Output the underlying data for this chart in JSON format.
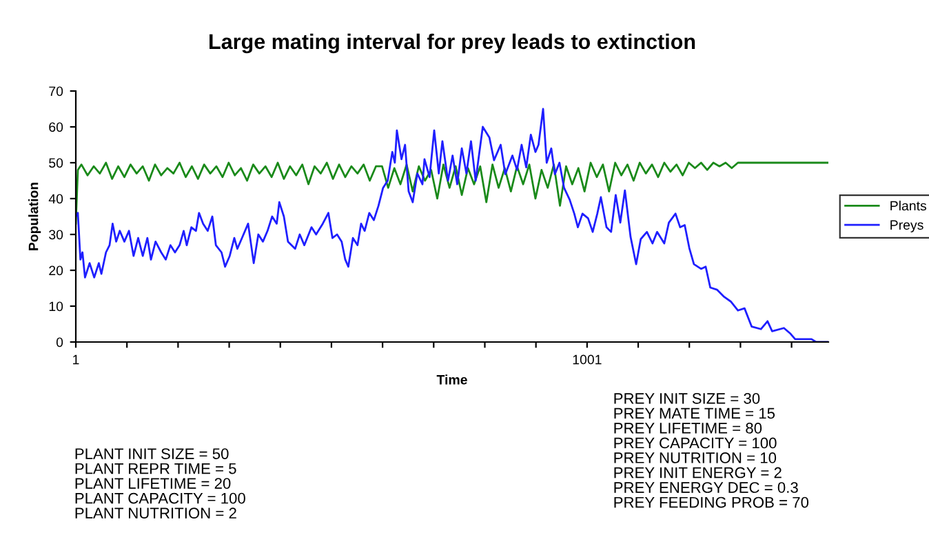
{
  "chart_data": {
    "type": "line",
    "title": "Large mating interval for prey leads to extinction",
    "xlabel": "Time",
    "ylabel": "Population",
    "xlim": [
      1,
      1473
    ],
    "xticks": [
      {
        "value": 1,
        "label": "1"
      },
      {
        "value": 101,
        "label": null
      },
      {
        "value": 201,
        "label": null
      },
      {
        "value": 301,
        "label": null
      },
      {
        "value": 401,
        "label": null
      },
      {
        "value": 501,
        "label": null
      },
      {
        "value": 601,
        "label": null
      },
      {
        "value": 701,
        "label": null
      },
      {
        "value": 801,
        "label": null
      },
      {
        "value": 901,
        "label": null
      },
      {
        "value": 1001,
        "label": "1001"
      },
      {
        "value": 1101,
        "label": null
      },
      {
        "value": 1201,
        "label": null
      },
      {
        "value": 1301,
        "label": null
      },
      {
        "value": 1401,
        "label": null
      }
    ],
    "ylim": [
      0,
      70
    ],
    "yticks": [
      0,
      10,
      20,
      30,
      40,
      50,
      60,
      70
    ],
    "grid": false,
    "legend": "right",
    "marker": "none",
    "line_style": "solid",
    "series": [
      {
        "name": "Plants",
        "color": "#1a8a1a",
        "x": [
          1,
          5,
          12,
          24,
          36,
          48,
          60,
          72,
          84,
          96,
          108,
          120,
          132,
          144,
          156,
          168,
          180,
          192,
          204,
          216,
          228,
          240,
          252,
          264,
          276,
          288,
          300,
          312,
          324,
          336,
          348,
          360,
          372,
          384,
          396,
          408,
          420,
          432,
          444,
          456,
          468,
          480,
          492,
          504,
          516,
          528,
          540,
          552,
          564,
          576,
          588,
          600,
          612,
          624,
          636,
          648,
          660,
          672,
          684,
          696,
          708,
          720,
          732,
          744,
          756,
          768,
          780,
          792,
          804,
          816,
          828,
          840,
          852,
          864,
          876,
          888,
          900,
          912,
          924,
          936,
          948,
          960,
          972,
          984,
          996,
          1008,
          1020,
          1032,
          1044,
          1056,
          1068,
          1080,
          1092,
          1104,
          1116,
          1128,
          1140,
          1152,
          1164,
          1176,
          1188,
          1200,
          1212,
          1224,
          1236,
          1248,
          1260,
          1272,
          1284,
          1296,
          1350,
          1473
        ],
        "values": [
          33,
          48,
          49.5,
          46.5,
          49,
          47,
          50,
          45.5,
          49,
          46,
          49.5,
          47,
          49,
          45,
          49.5,
          46.5,
          48.5,
          47,
          50,
          46,
          49,
          45.5,
          49.5,
          47,
          49,
          46,
          50,
          46.5,
          48.5,
          45,
          49.5,
          47,
          49,
          46,
          50,
          45.5,
          49,
          46.5,
          49.5,
          44,
          49,
          47,
          50,
          45.5,
          49.5,
          46,
          49,
          47,
          49.5,
          45,
          49,
          49,
          43,
          48.5,
          44,
          49.5,
          42,
          49,
          45,
          48,
          40,
          49.5,
          43,
          49,
          41,
          48.5,
          44,
          49,
          39,
          49.5,
          43,
          48.5,
          42,
          49,
          44,
          49.5,
          40,
          48,
          43,
          49.5,
          38,
          49,
          44,
          48.5,
          42,
          50,
          46,
          49.5,
          42,
          50,
          46.5,
          49.5,
          45,
          50,
          47,
          49.5,
          46,
          50,
          47.5,
          49.5,
          46.5,
          50,
          48.5,
          50,
          48,
          50,
          49,
          50,
          48.5,
          50,
          50,
          50
        ]
      },
      {
        "name": "Preys",
        "color": "#1f1fff",
        "x": [
          1,
          5,
          10,
          14,
          19,
          28,
          37,
          46,
          51,
          60,
          67,
          73,
          80,
          87,
          96,
          105,
          114,
          123,
          132,
          141,
          148,
          157,
          168,
          177,
          186,
          195,
          204,
          212,
          218,
          227,
          236,
          242,
          250,
          259,
          268,
          275,
          286,
          293,
          302,
          311,
          317,
          326,
          338,
          349,
          358,
          367,
          376,
          385,
          394,
          399,
          408,
          416,
          430,
          439,
          448,
          462,
          471,
          484,
          495,
          503,
          512,
          521,
          528,
          534,
          543,
          552,
          559,
          566,
          575,
          584,
          593,
          602,
          611,
          620,
          625,
          629,
          638,
          645,
          652,
          660,
          669,
          679,
          683,
          693,
          702,
          711,
          718,
          729,
          738,
          747,
          756,
          765,
          774,
          783,
          797,
          810,
          819,
          832,
          841,
          855,
          864,
          873,
          882,
          891,
          900,
          906,
          915,
          922,
          931,
          938,
          947,
          956,
          967,
          976,
          983,
          992,
          1003,
          1012,
          1021,
          1028,
          1039,
          1048,
          1057,
          1066,
          1075,
          1086,
          1097,
          1106,
          1118,
          1129,
          1138,
          1152,
          1161,
          1174,
          1183,
          1192,
          1201,
          1210,
          1224,
          1233,
          1242,
          1255,
          1269,
          1282,
          1296,
          1309,
          1323,
          1341,
          1354,
          1363,
          1386,
          1399,
          1408,
          1440,
          1449,
          1473
        ],
        "values": [
          35,
          36,
          23,
          25,
          18,
          22,
          18,
          22,
          19,
          25,
          27,
          33,
          28,
          31,
          28,
          31,
          24,
          29,
          24,
          29,
          23,
          28,
          25,
          23,
          27,
          25,
          27,
          31,
          27,
          32,
          31,
          36,
          33,
          31,
          35,
          27,
          25,
          21,
          24,
          29,
          26,
          29,
          33,
          22,
          30,
          28,
          31,
          35,
          33,
          39,
          35,
          28,
          26,
          30,
          27,
          32,
          30,
          33,
          36,
          29,
          30,
          28,
          23,
          21,
          29,
          27,
          33,
          31,
          36,
          34,
          38,
          43,
          45,
          53,
          50,
          59,
          51,
          55,
          42,
          39,
          47,
          44,
          51,
          46,
          59,
          47,
          56,
          45,
          52,
          44,
          54,
          47,
          56,
          45,
          60,
          57,
          50.7,
          55,
          46.8,
          52,
          48,
          55,
          48.7,
          57.8,
          53,
          55,
          65,
          50,
          54,
          46.8,
          50,
          43,
          39.7,
          35.8,
          32,
          35.8,
          34.5,
          30.7,
          35.8,
          40.4,
          32,
          30.7,
          41,
          33.3,
          42.3,
          29.4,
          21.7,
          28.7,
          30.7,
          27.5,
          30.7,
          27.5,
          33.3,
          35.8,
          32,
          32.6,
          26.2,
          21.7,
          20.4,
          21,
          15.2,
          14.6,
          12.6,
          11.3,
          8.8,
          9.4,
          4.3,
          3.6,
          5.8,
          3,
          3.9,
          2.3,
          0.8,
          0.8,
          0,
          0
        ]
      }
    ],
    "annotations": [
      "PLANT INIT SIZE = 50\nPLANT REPR TIME = 5\nPLANT LIFETIME = 20\nPLANT CAPACITY = 100\nPLANT NUTRITION = 2",
      "PREY INIT SIZE = 30\nPREY MATE TIME = 15\nPREY LIFETIME = 80\nPREY CAPACITY = 100\nPREY NUTRITION = 10\nPREY INIT ENERGY = 2\nPREY ENERGY DEC = 0.3\nPREY FEEDING PROB = 70"
    ]
  }
}
